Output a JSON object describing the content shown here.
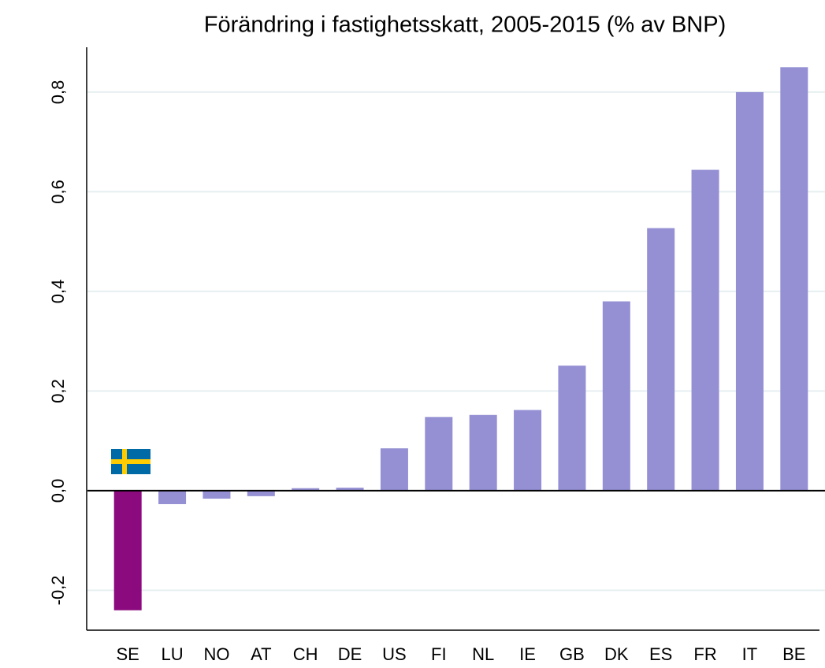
{
  "chart_data": {
    "type": "bar",
    "title": "Förändring i fastighetsskatt, 2005-2015 (% av BNP)",
    "categories": [
      "SE",
      "LU",
      "NO",
      "AT",
      "CH",
      "DE",
      "US",
      "FI",
      "NL",
      "IE",
      "GB",
      "DK",
      "ES",
      "FR",
      "IT",
      "BE"
    ],
    "values": [
      -0.24,
      -0.027,
      -0.016,
      -0.011,
      0.005,
      0.006,
      0.085,
      0.148,
      0.152,
      0.162,
      0.251,
      0.38,
      0.527,
      0.644,
      0.8,
      0.85
    ],
    "colors": [
      "#8b0a7e",
      "#9590d4",
      "#9590d4",
      "#9590d4",
      "#9590d4",
      "#9590d4",
      "#9590d4",
      "#9590d4",
      "#9590d4",
      "#9590d4",
      "#9590d4",
      "#9590d4",
      "#9590d4",
      "#9590d4",
      "#9590d4",
      "#9590d4"
    ],
    "ylim": [
      -0.28,
      0.89
    ],
    "yticks": [
      {
        "value": -0.2,
        "label": "-0,2"
      },
      {
        "value": 0,
        "label": "0,0"
      },
      {
        "value": 0.2,
        "label": "0,2"
      },
      {
        "value": 0.4,
        "label": "0,4"
      },
      {
        "value": 0.6,
        "label": "0,6"
      },
      {
        "value": 0.8,
        "label": "0,8"
      }
    ],
    "grid": true
  }
}
